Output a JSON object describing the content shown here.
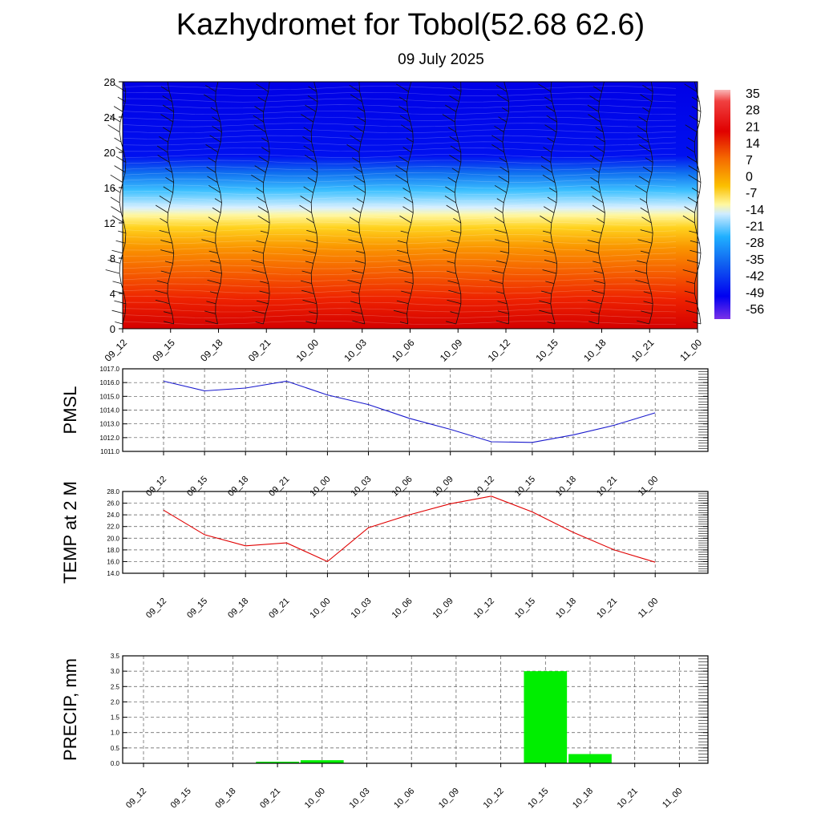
{
  "title": "Kazhydromet for Tobol(52.68 62.6)",
  "subtitle": "09 July 2025",
  "time_labels": [
    "09_12",
    "09_15",
    "09_18",
    "09_21",
    "10_00",
    "10_03",
    "10_06",
    "10_09",
    "10_12",
    "10_15",
    "10_18",
    "10_21",
    "11_00"
  ],
  "chart_data": [
    {
      "type": "heatmap",
      "title": "",
      "ylabel": "",
      "y_ticks": [
        0,
        4,
        8,
        12,
        16,
        20,
        24,
        28
      ],
      "ylim": [
        0,
        28
      ],
      "colorbar_ticks": [
        35,
        28,
        21,
        14,
        7,
        0,
        -7,
        -14,
        -21,
        -28,
        -35,
        -42,
        -49,
        -56
      ],
      "colors": {
        "warm": "#e60000",
        "mid": "#fff04a",
        "cold": "#0000f0"
      },
      "description_levels": {
        "yellow_band_level": 13,
        "blue_top_level": 19
      }
    },
    {
      "type": "line",
      "ylabel": "PMSL",
      "ylim": [
        1011,
        1017
      ],
      "y_ticks": [
        "1011.0",
        "1012.0",
        "1013.0",
        "1014.0",
        "1015.0",
        "1016.0",
        "1017.0"
      ],
      "series": [
        {
          "values": [
            1016.1,
            1015.4,
            1015.6,
            1016.1,
            1015.1,
            1014.4,
            1013.4,
            1012.6,
            1011.7,
            1011.65,
            1012.2,
            1012.9,
            1013.8
          ]
        }
      ],
      "color": "#1a1acd"
    },
    {
      "type": "line",
      "ylabel": "TEMP at 2 M",
      "ylim": [
        14,
        28
      ],
      "y_ticks": [
        "14.0",
        "16.0",
        "18.0",
        "20.0",
        "22.0",
        "24.0",
        "26.0",
        "28.0"
      ],
      "series": [
        {
          "values": [
            24.8,
            20.6,
            18.7,
            19.2,
            16.0,
            21.8,
            24.0,
            25.9,
            27.2,
            24.5,
            21.0,
            18.0,
            15.9
          ]
        }
      ],
      "color": "#e00000"
    },
    {
      "type": "bar",
      "ylabel": "PRECIP, mm",
      "ylim": [
        0,
        3.5
      ],
      "y_ticks": [
        "0.0",
        "0.5",
        "1.0",
        "1.5",
        "2.0",
        "2.5",
        "3.0",
        "3.5"
      ],
      "series": [
        {
          "values": [
            0,
            0,
            0,
            0.05,
            0.1,
            0,
            0,
            0,
            0,
            3.0,
            0.3,
            0,
            0
          ]
        }
      ],
      "color": "#00ee00"
    }
  ]
}
